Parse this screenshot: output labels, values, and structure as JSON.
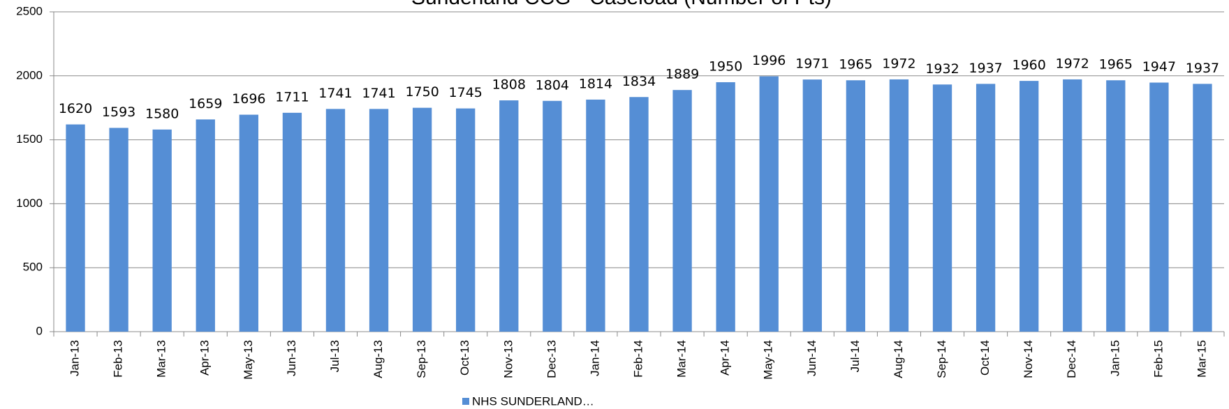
{
  "chart_data": {
    "type": "bar",
    "title": "Sunderland CCG - Caseload (Number of Pts)",
    "categories": [
      "Jan-13",
      "Feb-13",
      "Mar-13",
      "Apr-13",
      "May-13",
      "Jun-13",
      "Jul-13",
      "Aug-13",
      "Sep-13",
      "Oct-13",
      "Nov-13",
      "Dec-13",
      "Jan-14",
      "Feb-14",
      "Mar-14",
      "Apr-14",
      "May-14",
      "Jun-14",
      "Jul-14",
      "Aug-14",
      "Sep-14",
      "Oct-14",
      "Nov-14",
      "Dec-14",
      "Jan-15",
      "Feb-15",
      "Mar-15"
    ],
    "series": [
      {
        "name": "NHS SUNDERLAND…",
        "color": "#558ed5",
        "values": [
          1620,
          1593,
          1580,
          1659,
          1696,
          1711,
          1741,
          1741,
          1750,
          1745,
          1808,
          1804,
          1814,
          1834,
          1889,
          1950,
          1996,
          1971,
          1965,
          1972,
          1932,
          1937,
          1960,
          1972,
          1965,
          1947,
          1937
        ]
      }
    ],
    "ylim": [
      0,
      2500
    ],
    "yticks": [
      0,
      500,
      1000,
      1500,
      2000,
      2500
    ],
    "grid": true,
    "legend": "bottom"
  }
}
